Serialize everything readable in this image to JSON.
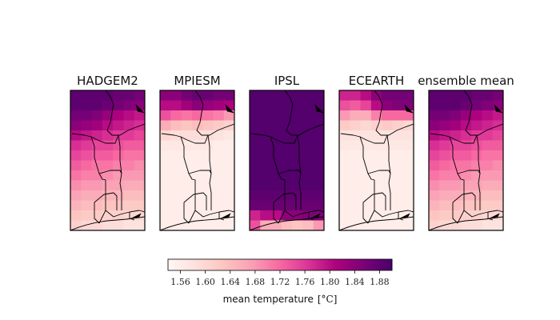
{
  "chart_data": {
    "type": "heatmap",
    "panels": [
      {
        "title": "HADGEM2",
        "grid": [
          [
            1.88,
            1.88,
            1.88,
            1.88,
            1.87,
            1.87,
            1.86
          ],
          [
            1.88,
            1.88,
            1.88,
            1.87,
            1.86,
            1.85,
            1.84
          ],
          [
            1.86,
            1.86,
            1.85,
            1.83,
            1.81,
            1.8,
            1.79
          ],
          [
            1.84,
            1.83,
            1.82,
            1.8,
            1.79,
            1.78,
            1.77
          ],
          [
            1.8,
            1.79,
            1.78,
            1.77,
            1.76,
            1.76,
            1.75
          ],
          [
            1.77,
            1.76,
            1.75,
            1.75,
            1.74,
            1.73,
            1.73
          ],
          [
            1.75,
            1.74,
            1.73,
            1.73,
            1.72,
            1.71,
            1.71
          ],
          [
            1.73,
            1.72,
            1.71,
            1.71,
            1.7,
            1.7,
            1.69
          ],
          [
            1.71,
            1.7,
            1.7,
            1.69,
            1.68,
            1.68,
            1.68
          ],
          [
            1.69,
            1.68,
            1.68,
            1.67,
            1.67,
            1.66,
            1.66
          ],
          [
            1.67,
            1.66,
            1.66,
            1.65,
            1.65,
            1.64,
            1.64
          ],
          [
            1.65,
            1.64,
            1.64,
            1.63,
            1.63,
            1.62,
            1.62
          ],
          [
            1.63,
            1.62,
            1.62,
            1.61,
            1.61,
            1.6,
            1.6
          ],
          [
            1.61,
            1.6,
            1.6,
            1.59,
            1.59,
            1.58,
            1.58
          ]
        ]
      },
      {
        "title": "MPIESM",
        "grid": [
          [
            1.84,
            1.84,
            1.86,
            1.87,
            1.87,
            1.86,
            1.86
          ],
          [
            1.8,
            1.8,
            1.82,
            1.84,
            1.83,
            1.82,
            1.81
          ],
          [
            1.74,
            1.72,
            1.71,
            1.72,
            1.71,
            1.7,
            1.68
          ],
          [
            1.66,
            1.64,
            1.63,
            1.64,
            1.63,
            1.62,
            1.61
          ],
          [
            1.6,
            1.59,
            1.59,
            1.59,
            1.59,
            1.58,
            1.57
          ],
          [
            1.57,
            1.57,
            1.57,
            1.57,
            1.57,
            1.56,
            1.56
          ],
          [
            1.56,
            1.56,
            1.56,
            1.56,
            1.56,
            1.56,
            1.56
          ],
          [
            1.56,
            1.56,
            1.56,
            1.56,
            1.56,
            1.56,
            1.56
          ],
          [
            1.56,
            1.56,
            1.56,
            1.56,
            1.56,
            1.56,
            1.56
          ],
          [
            1.56,
            1.56,
            1.56,
            1.56,
            1.56,
            1.56,
            1.56
          ],
          [
            1.56,
            1.56,
            1.56,
            1.56,
            1.56,
            1.56,
            1.56
          ],
          [
            1.56,
            1.56,
            1.56,
            1.56,
            1.56,
            1.56,
            1.56
          ],
          [
            1.56,
            1.56,
            1.56,
            1.56,
            1.56,
            1.56,
            1.56
          ],
          [
            1.56,
            1.56,
            1.56,
            1.56,
            1.56,
            1.56,
            1.56
          ]
        ]
      },
      {
        "title": "IPSL",
        "grid": [
          [
            1.89,
            1.89,
            1.89,
            1.89,
            1.89,
            1.89,
            1.89
          ],
          [
            1.89,
            1.89,
            1.89,
            1.89,
            1.89,
            1.89,
            1.89
          ],
          [
            1.89,
            1.89,
            1.89,
            1.89,
            1.89,
            1.89,
            1.89
          ],
          [
            1.89,
            1.89,
            1.89,
            1.89,
            1.89,
            1.89,
            1.89
          ],
          [
            1.89,
            1.89,
            1.89,
            1.89,
            1.89,
            1.89,
            1.89
          ],
          [
            1.89,
            1.89,
            1.89,
            1.89,
            1.89,
            1.89,
            1.89
          ],
          [
            1.89,
            1.89,
            1.89,
            1.89,
            1.89,
            1.89,
            1.89
          ],
          [
            1.89,
            1.89,
            1.89,
            1.89,
            1.89,
            1.89,
            1.89
          ],
          [
            1.89,
            1.89,
            1.89,
            1.89,
            1.89,
            1.89,
            1.89
          ],
          [
            1.89,
            1.89,
            1.89,
            1.89,
            1.89,
            1.89,
            1.89
          ],
          [
            1.88,
            1.88,
            1.88,
            1.88,
            1.88,
            1.88,
            1.88
          ],
          [
            1.87,
            1.87,
            1.87,
            1.87,
            1.87,
            1.87,
            1.87
          ],
          [
            1.78,
            1.8,
            1.8,
            1.84,
            1.84,
            1.85,
            1.85
          ],
          [
            1.74,
            1.66,
            1.66,
            1.64,
            1.63,
            1.64,
            1.68
          ]
        ]
      },
      {
        "title": "ECEARTH",
        "grid": [
          [
            1.78,
            1.78,
            1.8,
            1.84,
            1.86,
            1.86,
            1.86
          ],
          [
            1.74,
            1.73,
            1.75,
            1.8,
            1.84,
            1.85,
            1.85
          ],
          [
            1.68,
            1.66,
            1.66,
            1.7,
            1.72,
            1.72,
            1.72
          ],
          [
            1.62,
            1.61,
            1.6,
            1.61,
            1.62,
            1.61,
            1.6
          ],
          [
            1.58,
            1.58,
            1.58,
            1.58,
            1.58,
            1.58,
            1.58
          ],
          [
            1.57,
            1.57,
            1.57,
            1.57,
            1.57,
            1.57,
            1.57
          ],
          [
            1.56,
            1.56,
            1.56,
            1.56,
            1.56,
            1.56,
            1.56
          ],
          [
            1.56,
            1.56,
            1.56,
            1.56,
            1.56,
            1.56,
            1.56
          ],
          [
            1.56,
            1.56,
            1.56,
            1.56,
            1.56,
            1.56,
            1.56
          ],
          [
            1.56,
            1.56,
            1.56,
            1.56,
            1.56,
            1.56,
            1.56
          ],
          [
            1.56,
            1.56,
            1.56,
            1.56,
            1.56,
            1.56,
            1.56
          ],
          [
            1.56,
            1.56,
            1.56,
            1.56,
            1.56,
            1.56,
            1.56
          ],
          [
            1.56,
            1.56,
            1.56,
            1.56,
            1.56,
            1.56,
            1.56
          ],
          [
            1.56,
            1.56,
            1.56,
            1.56,
            1.56,
            1.56,
            1.56
          ]
        ]
      },
      {
        "title": "ensemble mean",
        "grid": [
          [
            1.88,
            1.88,
            1.88,
            1.88,
            1.87,
            1.87,
            1.86
          ],
          [
            1.88,
            1.88,
            1.88,
            1.87,
            1.86,
            1.85,
            1.84
          ],
          [
            1.86,
            1.86,
            1.85,
            1.83,
            1.81,
            1.8,
            1.79
          ],
          [
            1.84,
            1.83,
            1.82,
            1.8,
            1.79,
            1.78,
            1.77
          ],
          [
            1.8,
            1.79,
            1.78,
            1.77,
            1.76,
            1.76,
            1.75
          ],
          [
            1.77,
            1.76,
            1.75,
            1.75,
            1.74,
            1.73,
            1.73
          ],
          [
            1.75,
            1.74,
            1.73,
            1.73,
            1.72,
            1.71,
            1.71
          ],
          [
            1.73,
            1.72,
            1.71,
            1.71,
            1.7,
            1.7,
            1.69
          ],
          [
            1.71,
            1.7,
            1.7,
            1.69,
            1.68,
            1.68,
            1.68
          ],
          [
            1.69,
            1.68,
            1.68,
            1.67,
            1.67,
            1.66,
            1.66
          ],
          [
            1.67,
            1.66,
            1.66,
            1.65,
            1.65,
            1.64,
            1.64
          ],
          [
            1.65,
            1.64,
            1.64,
            1.63,
            1.63,
            1.62,
            1.62
          ],
          [
            1.63,
            1.62,
            1.62,
            1.61,
            1.61,
            1.6,
            1.6
          ],
          [
            1.61,
            1.6,
            1.6,
            1.59,
            1.59,
            1.58,
            1.58
          ]
        ]
      }
    ],
    "colorbar": {
      "colormap": "RdPu",
      "vmin": 1.54,
      "vmax": 1.9,
      "ticks": [
        "1.56",
        "1.60",
        "1.64",
        "1.68",
        "1.72",
        "1.76",
        "1.80",
        "1.84",
        "1.88"
      ],
      "label": "mean temperature",
      "unit": "[°C]",
      "orientation": "horizontal",
      "placement": "bottom-center"
    }
  },
  "colors": {
    "stops": [
      "#fff7f3",
      "#fde0dd",
      "#fcc5c0",
      "#fa9fb5",
      "#f768a1",
      "#dd3497",
      "#ae017e",
      "#7a0177",
      "#49006a"
    ],
    "border": "#000000"
  }
}
